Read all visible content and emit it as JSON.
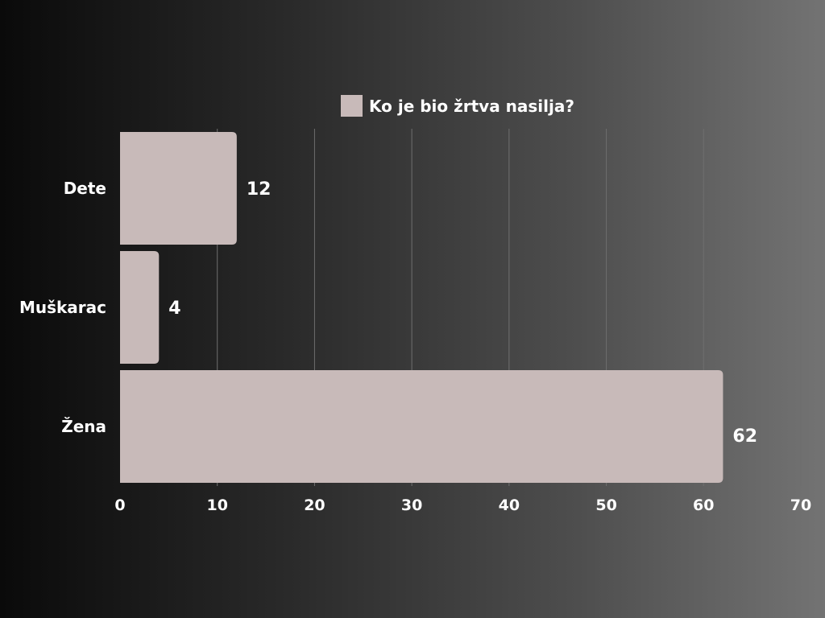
{
  "chart_data": {
    "type": "bar",
    "orientation": "horizontal",
    "categories": [
      "Dete",
      "Muškarac",
      "Žena"
    ],
    "series": [
      {
        "name": "Ko je bio žrtva nasilja?",
        "values": [
          12,
          4,
          62
        ],
        "color": "#c8bab9"
      }
    ],
    "xlim": [
      0,
      70
    ],
    "xticks": [
      0,
      10,
      20,
      30,
      40,
      50,
      60,
      70
    ],
    "grid": true,
    "legend_position": "top"
  }
}
